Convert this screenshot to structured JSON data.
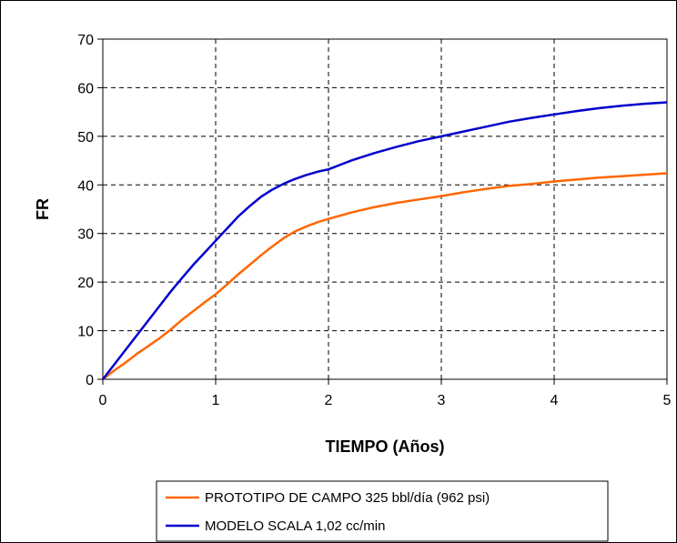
{
  "chart_data": {
    "type": "line",
    "xlabel": "TIEMPO (Años)",
    "ylabel": "FR",
    "xlim": [
      0,
      5
    ],
    "ylim": [
      0,
      70
    ],
    "x_ticks": [
      0,
      1,
      2,
      3,
      4,
      5
    ],
    "y_ticks": [
      0,
      10,
      20,
      30,
      40,
      50,
      60,
      70
    ],
    "grid": true,
    "grid_style": "dashed",
    "legend_position": "bottom",
    "series": [
      {
        "name": "PROTOTIPO DE CAMPO 325 bbl/día (962 psi)",
        "color": "#ff6600",
        "x": [
          0,
          0.1,
          0.2,
          0.3,
          0.4,
          0.5,
          0.6,
          0.7,
          0.8,
          0.9,
          1.0,
          1.1,
          1.2,
          1.3,
          1.4,
          1.5,
          1.6,
          1.7,
          1.8,
          1.9,
          2.0,
          2.2,
          2.4,
          2.6,
          2.8,
          3.0,
          3.2,
          3.4,
          3.6,
          3.8,
          4.0,
          4.2,
          4.4,
          4.6,
          4.8,
          5.0
        ],
        "y": [
          0,
          1.8,
          3.4,
          5.2,
          6.8,
          8.4,
          10.2,
          12.2,
          14.0,
          15.8,
          17.5,
          19.5,
          21.6,
          23.5,
          25.5,
          27.3,
          29.0,
          30.4,
          31.4,
          32.3,
          33.0,
          34.3,
          35.4,
          36.3,
          37.0,
          37.7,
          38.5,
          39.2,
          39.8,
          40.2,
          40.7,
          41.1,
          41.5,
          41.8,
          42.1,
          42.4
        ]
      },
      {
        "name": "MODELO SCALA 1,02 cc/min",
        "color": "#0000cc",
        "x": [
          0,
          0.1,
          0.2,
          0.3,
          0.4,
          0.5,
          0.6,
          0.7,
          0.8,
          0.9,
          1.0,
          1.1,
          1.2,
          1.3,
          1.4,
          1.5,
          1.6,
          1.7,
          1.8,
          1.9,
          2.0,
          2.2,
          2.4,
          2.6,
          2.8,
          3.0,
          3.2,
          3.4,
          3.6,
          3.8,
          4.0,
          4.2,
          4.4,
          4.6,
          4.8,
          5.0
        ],
        "y": [
          0,
          3.0,
          6.0,
          9.0,
          12.0,
          15.0,
          18.0,
          20.8,
          23.5,
          26.0,
          28.5,
          31.0,
          33.5,
          35.6,
          37.5,
          39.0,
          40.2,
          41.2,
          42.0,
          42.7,
          43.2,
          45.0,
          46.5,
          47.8,
          49.0,
          50.0,
          51.0,
          52.0,
          53.0,
          53.8,
          54.5,
          55.2,
          55.8,
          56.3,
          56.7,
          57.0
        ]
      }
    ]
  }
}
